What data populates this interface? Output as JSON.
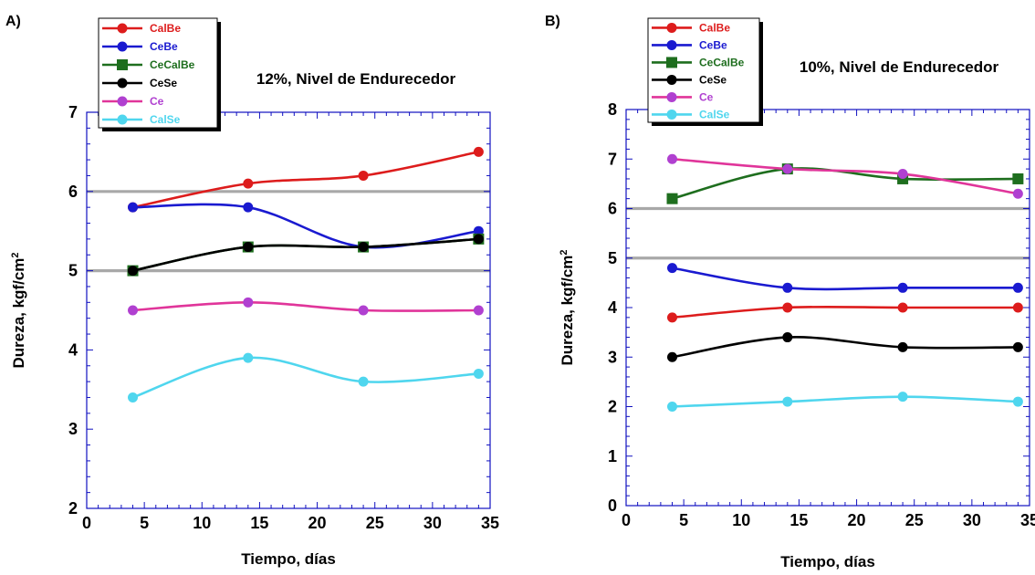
{
  "chart_data": [
    {
      "panel_label": "A)",
      "type": "line",
      "annotation": "12%, Nivel de Endurecedor",
      "xlabel": "Tiempo, días",
      "ylabel_main": "Dureza, kgf/cm",
      "ylabel_sup": "2",
      "xlim": [
        0,
        35
      ],
      "ylim": [
        2,
        7
      ],
      "xticks": [
        "0",
        "5",
        "10",
        "15",
        "20",
        "25",
        "30",
        "35"
      ],
      "yticks": [
        "2",
        "3",
        "4",
        "5",
        "6",
        "7"
      ],
      "grid": false,
      "reference_lines": [
        5,
        6
      ],
      "legend_position": "top-left",
      "x": [
        4,
        14,
        24,
        34
      ],
      "series": [
        {
          "name": "CalBe",
          "color": "#dd1c1c",
          "marker": "circle",
          "values": [
            5.8,
            6.1,
            6.2,
            6.5
          ]
        },
        {
          "name": "CeBe",
          "color": "#1a1ad0",
          "marker": "circle",
          "values": [
            5.8,
            5.8,
            5.3,
            5.5
          ]
        },
        {
          "name": "CeCalBe",
          "color": "#1e6e1e",
          "marker": "square",
          "values": [
            5.0,
            5.3,
            5.3,
            5.4
          ]
        },
        {
          "name": "CeSe",
          "color": "#000000",
          "marker": "circle",
          "values": [
            5.0,
            5.3,
            5.3,
            5.4
          ]
        },
        {
          "name": "Ce",
          "color": "#e0359a",
          "marker_color": "#b040d0",
          "marker": "circle",
          "values": [
            4.5,
            4.6,
            4.5,
            4.5
          ]
        },
        {
          "name": "CalSe",
          "color": "#4fd6ee",
          "marker": "circle",
          "values": [
            3.4,
            3.9,
            3.6,
            3.7
          ]
        }
      ]
    },
    {
      "panel_label": "B)",
      "type": "line",
      "annotation": "10%, Nivel de Endurecedor",
      "xlabel": "Tiempo, días",
      "ylabel_main": "Dureza, kgf/cm",
      "ylabel_sup": "2",
      "xlim": [
        0,
        35
      ],
      "ylim": [
        0,
        8
      ],
      "xticks": [
        "0",
        "5",
        "10",
        "15",
        "20",
        "25",
        "30",
        "35"
      ],
      "yticks": [
        "0",
        "1",
        "2",
        "3",
        "4",
        "5",
        "6",
        "7",
        "8"
      ],
      "grid": false,
      "reference_lines": [
        5,
        6
      ],
      "legend_position": "top-left",
      "x": [
        4,
        14,
        24,
        34
      ],
      "series": [
        {
          "name": "CalBe",
          "color": "#dd1c1c",
          "marker": "circle",
          "values": [
            3.8,
            4.0,
            4.0,
            4.0
          ]
        },
        {
          "name": "CeBe",
          "color": "#1a1ad0",
          "marker": "circle",
          "values": [
            4.8,
            4.4,
            4.4,
            4.4
          ]
        },
        {
          "name": "CeCalBe",
          "color": "#1e6e1e",
          "marker": "square",
          "values": [
            6.2,
            6.8,
            6.6,
            6.6
          ]
        },
        {
          "name": "CeSe",
          "color": "#000000",
          "marker": "circle",
          "values": [
            3.0,
            3.4,
            3.2,
            3.2
          ]
        },
        {
          "name": "Ce",
          "color": "#e0359a",
          "marker_color": "#b040d0",
          "marker": "circle",
          "values": [
            7.0,
            6.8,
            6.7,
            6.3
          ]
        },
        {
          "name": "CalSe",
          "color": "#4fd6ee",
          "marker": "circle",
          "values": [
            2.0,
            2.1,
            2.2,
            2.1
          ]
        }
      ]
    }
  ]
}
